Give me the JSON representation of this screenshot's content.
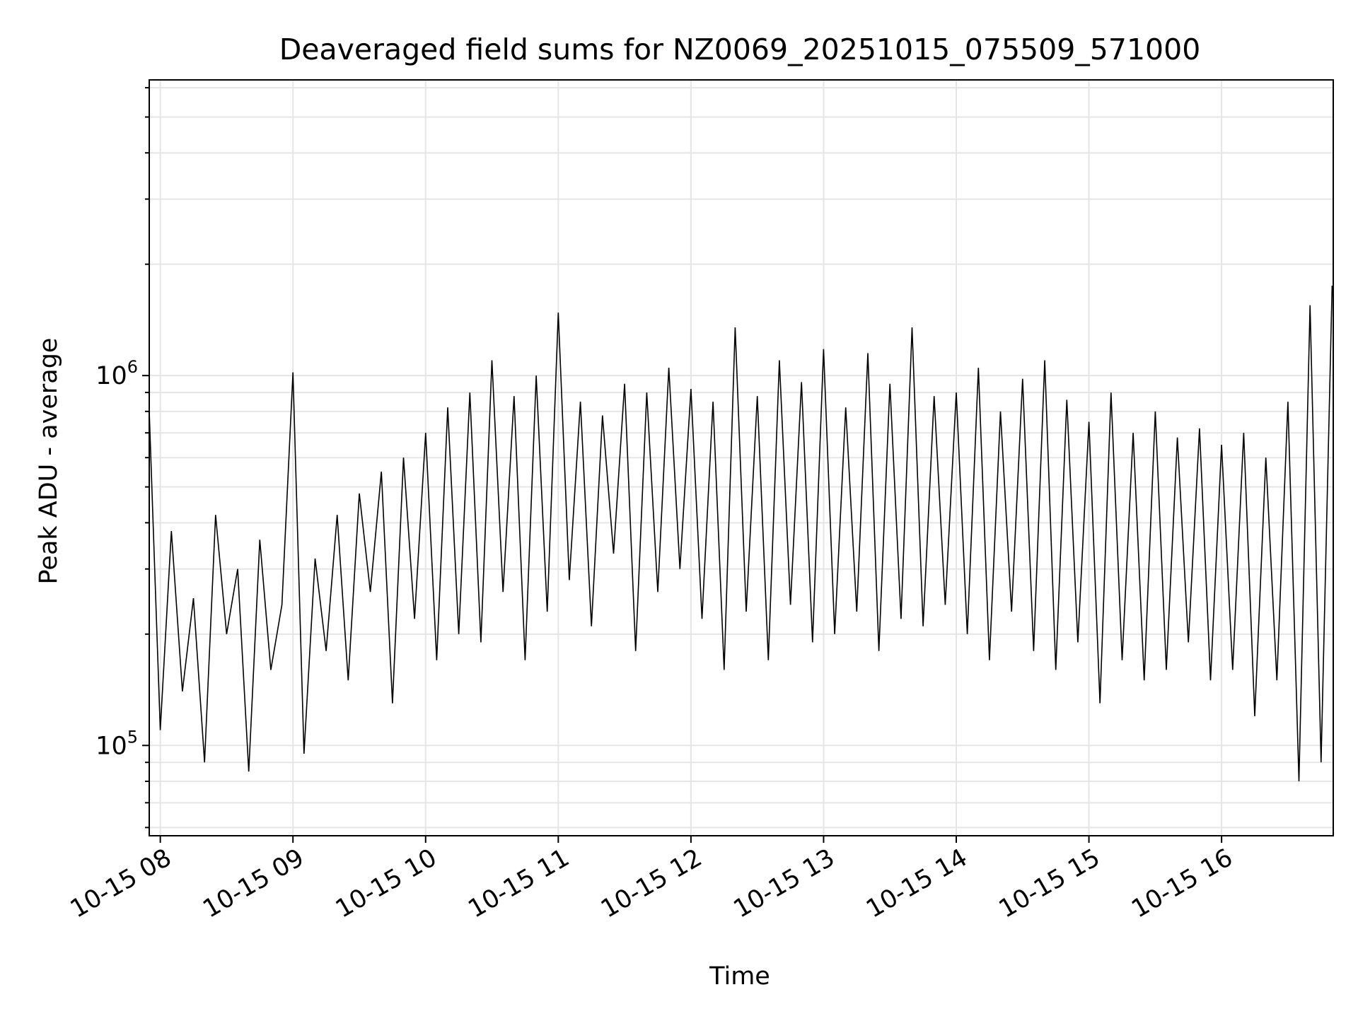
{
  "chart_data": {
    "type": "line",
    "title": "Deaveraged field sums for NZ0069_20251015_075509_571000",
    "xlabel": "Time",
    "ylabel": "Peak ADU - average",
    "x_axis_type": "time",
    "y_scale": "log",
    "xlim": [
      "2025-10-15 07:55:00",
      "2025-10-15 16:50:30"
    ],
    "ylim": [
      57000,
      6300000
    ],
    "grid": true,
    "grid_color": "#e5e5e5",
    "line_color": "#000000",
    "x_ticks": [
      {
        "label": "10-15 08",
        "value": "2025-10-15 08:00"
      },
      {
        "label": "10-15 09",
        "value": "2025-10-15 09:00"
      },
      {
        "label": "10-15 10",
        "value": "2025-10-15 10:00"
      },
      {
        "label": "10-15 11",
        "value": "2025-10-15 11:00"
      },
      {
        "label": "10-15 12",
        "value": "2025-10-15 12:00"
      },
      {
        "label": "10-15 13",
        "value": "2025-10-15 13:00"
      },
      {
        "label": "10-15 14",
        "value": "2025-10-15 14:00"
      },
      {
        "label": "10-15 15",
        "value": "2025-10-15 15:00"
      },
      {
        "label": "10-15 16",
        "value": "2025-10-15 16:00"
      }
    ],
    "y_ticks": [
      {
        "base": "10",
        "exp": "5",
        "value": 100000
      },
      {
        "base": "10",
        "exp": "6",
        "value": 1000000
      }
    ],
    "series": [
      {
        "x": [
          "2025-10-15 07:55",
          "2025-10-15 08:00",
          "2025-10-15 08:05",
          "2025-10-15 08:10",
          "2025-10-15 08:15",
          "2025-10-15 08:20",
          "2025-10-15 08:25",
          "2025-10-15 08:30",
          "2025-10-15 08:35",
          "2025-10-15 08:40",
          "2025-10-15 08:45",
          "2025-10-15 08:50",
          "2025-10-15 08:55",
          "2025-10-15 09:00",
          "2025-10-15 09:05",
          "2025-10-15 09:10",
          "2025-10-15 09:15",
          "2025-10-15 09:20",
          "2025-10-15 09:25",
          "2025-10-15 09:30",
          "2025-10-15 09:35",
          "2025-10-15 09:40",
          "2025-10-15 09:45",
          "2025-10-15 09:50",
          "2025-10-15 09:55",
          "2025-10-15 10:00",
          "2025-10-15 10:05",
          "2025-10-15 10:10",
          "2025-10-15 10:15",
          "2025-10-15 10:20",
          "2025-10-15 10:25",
          "2025-10-15 10:30",
          "2025-10-15 10:35",
          "2025-10-15 10:40",
          "2025-10-15 10:45",
          "2025-10-15 10:50",
          "2025-10-15 10:55",
          "2025-10-15 11:00",
          "2025-10-15 11:05",
          "2025-10-15 11:10",
          "2025-10-15 11:15",
          "2025-10-15 11:20",
          "2025-10-15 11:25",
          "2025-10-15 11:30",
          "2025-10-15 11:35",
          "2025-10-15 11:40",
          "2025-10-15 11:45",
          "2025-10-15 11:50",
          "2025-10-15 11:55",
          "2025-10-15 12:00",
          "2025-10-15 12:05",
          "2025-10-15 12:10",
          "2025-10-15 12:15",
          "2025-10-15 12:20",
          "2025-10-15 12:25",
          "2025-10-15 12:30",
          "2025-10-15 12:35",
          "2025-10-15 12:40",
          "2025-10-15 12:45",
          "2025-10-15 12:50",
          "2025-10-15 12:55",
          "2025-10-15 13:00",
          "2025-10-15 13:05",
          "2025-10-15 13:10",
          "2025-10-15 13:15",
          "2025-10-15 13:20",
          "2025-10-15 13:25",
          "2025-10-15 13:30",
          "2025-10-15 13:35",
          "2025-10-15 13:40",
          "2025-10-15 13:45",
          "2025-10-15 13:50",
          "2025-10-15 13:55",
          "2025-10-15 14:00",
          "2025-10-15 14:05",
          "2025-10-15 14:10",
          "2025-10-15 14:15",
          "2025-10-15 14:20",
          "2025-10-15 14:25",
          "2025-10-15 14:30",
          "2025-10-15 14:35",
          "2025-10-15 14:40",
          "2025-10-15 14:45",
          "2025-10-15 14:50",
          "2025-10-15 14:55",
          "2025-10-15 15:00",
          "2025-10-15 15:05",
          "2025-10-15 15:10",
          "2025-10-15 15:15",
          "2025-10-15 15:20",
          "2025-10-15 15:25",
          "2025-10-15 15:30",
          "2025-10-15 15:35",
          "2025-10-15 15:40",
          "2025-10-15 15:45",
          "2025-10-15 15:50",
          "2025-10-15 15:55",
          "2025-10-15 16:00",
          "2025-10-15 16:05",
          "2025-10-15 16:10",
          "2025-10-15 16:15",
          "2025-10-15 16:20",
          "2025-10-15 16:25",
          "2025-10-15 16:30",
          "2025-10-15 16:35",
          "2025-10-15 16:40",
          "2025-10-15 16:45",
          "2025-10-15 16:50"
        ],
        "y": [
          800000,
          110000,
          380000,
          140000,
          250000,
          90000,
          420000,
          200000,
          300000,
          85000,
          360000,
          160000,
          240000,
          1020000,
          95000,
          320000,
          180000,
          420000,
          150000,
          480000,
          260000,
          550000,
          130000,
          600000,
          220000,
          700000,
          170000,
          820000,
          200000,
          900000,
          190000,
          1100000,
          260000,
          880000,
          170000,
          1000000,
          230000,
          1480000,
          280000,
          850000,
          210000,
          780000,
          330000,
          950000,
          180000,
          900000,
          260000,
          1050000,
          300000,
          920000,
          220000,
          850000,
          160000,
          1350000,
          230000,
          880000,
          170000,
          1100000,
          240000,
          960000,
          190000,
          1180000,
          200000,
          820000,
          230000,
          1150000,
          180000,
          950000,
          220000,
          1350000,
          210000,
          880000,
          240000,
          900000,
          200000,
          1050000,
          170000,
          800000,
          230000,
          980000,
          180000,
          1100000,
          160000,
          860000,
          190000,
          750000,
          130000,
          900000,
          170000,
          700000,
          150000,
          800000,
          160000,
          680000,
          190000,
          720000,
          150000,
          650000,
          160000,
          700000,
          120000,
          600000,
          150000,
          850000,
          80000,
          1550000,
          90000,
          1750000
        ]
      }
    ]
  }
}
